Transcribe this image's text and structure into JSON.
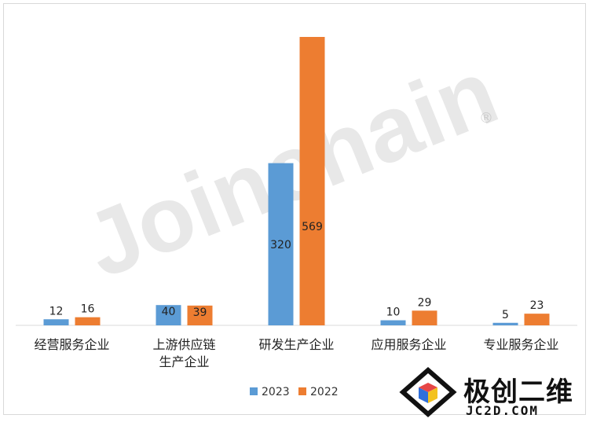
{
  "chart_data": {
    "type": "bar",
    "categories": [
      "经营服务企业",
      "上游供应链生产企业",
      "研发生产企业",
      "应用服务企业",
      "专业服务企业"
    ],
    "category_lines": [
      [
        "经营服务企业"
      ],
      [
        "上游供应链",
        "生产企业"
      ],
      [
        "研发生产企业"
      ],
      [
        "应用服务企业"
      ],
      [
        "专业服务企业"
      ]
    ],
    "series": [
      {
        "name": "2023",
        "values": [
          12,
          40,
          320,
          10,
          5
        ],
        "color": "#5b9bd5"
      },
      {
        "name": "2022",
        "values": [
          16,
          39,
          569,
          29,
          23
        ],
        "color": "#ed7d31"
      }
    ],
    "ylim": [
      0,
      600
    ],
    "grid": false,
    "legend_position": "bottom"
  },
  "watermark": {
    "text": "Joinchain",
    "registered": "®",
    "brand_name": "极创二维",
    "brand_url": "JC2D.COM",
    "brand_icon": "cube-logo-icon"
  }
}
